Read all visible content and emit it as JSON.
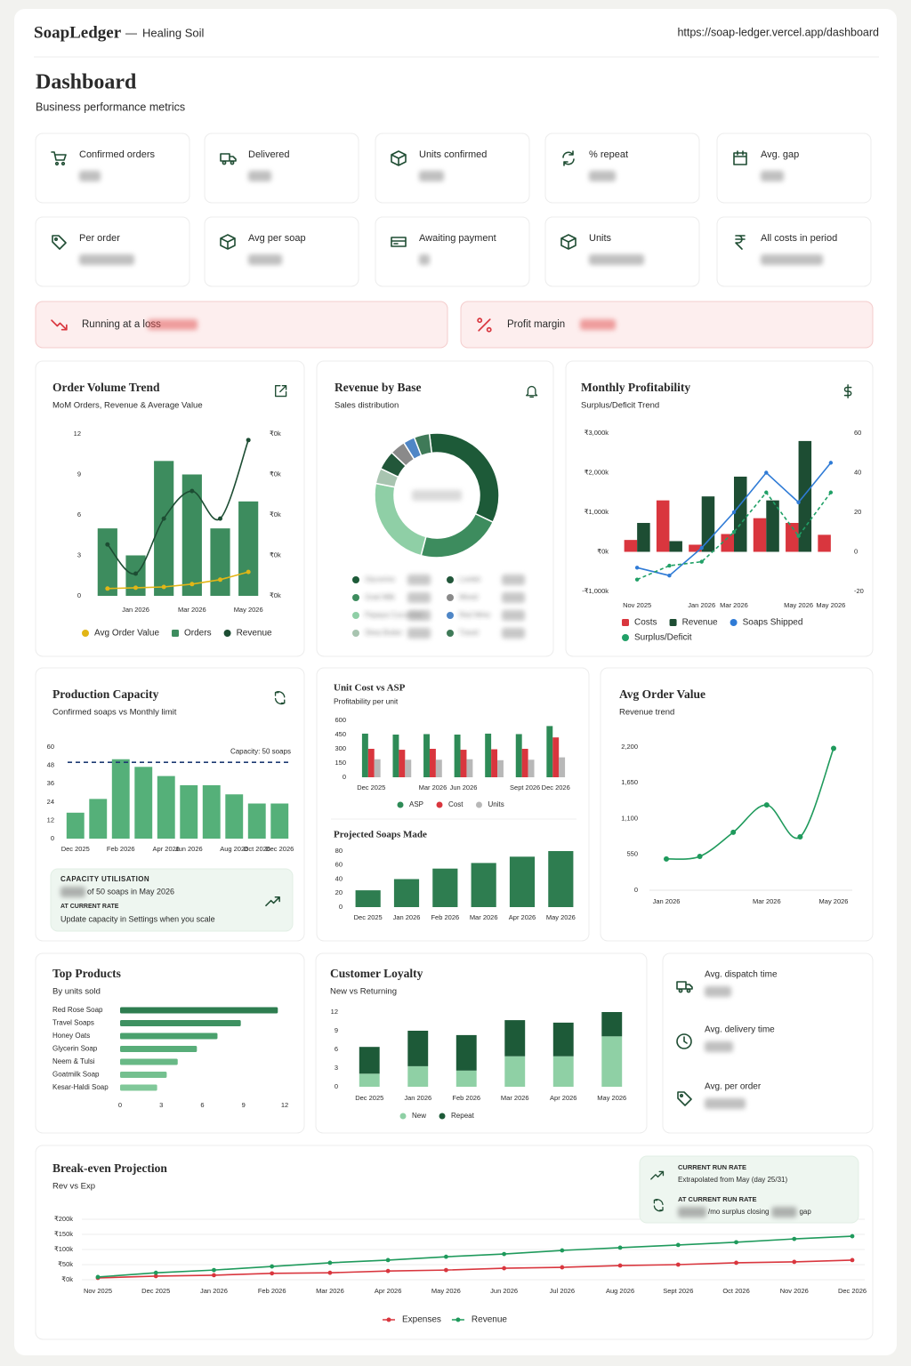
{
  "header": {
    "brand": "SoapLedger",
    "separator": "—",
    "workspace": "Healing Soil",
    "url": "https://soap-ledger.vercel.app/dashboard"
  },
  "page": {
    "title": "Dashboard",
    "subtitle": "Business performance metrics"
  },
  "kpis": [
    "Confirmed orders",
    "Delivered",
    "Units confirmed",
    "% repeat",
    "Avg. gap",
    "Per order",
    "Avg per soap",
    "Awaiting payment",
    "Units",
    "All costs in period"
  ],
  "alerts": [
    "Running at a loss",
    "Profit margin"
  ],
  "chart_data": [
    {
      "type": "combo",
      "title": "Order Volume Trend",
      "subtitle": "MoM Orders, Revenue & Average Value",
      "categories": [
        null,
        "Jan 2026",
        null,
        "Mar 2026",
        null,
        "May 2026"
      ],
      "series": [
        {
          "name": "Avg Order Value",
          "color": "#e2b616",
          "kind": "line",
          "axis": "y2",
          "values": [
            18,
            20,
            22,
            29,
            40,
            59
          ]
        },
        {
          "name": "Orders",
          "color": "#3d8c5e",
          "kind": "bar",
          "values": [
            5,
            3,
            10,
            9,
            5,
            7
          ]
        },
        {
          "name": "Revenue",
          "color": "#1d4d33",
          "kind": "line",
          "axis": "y2",
          "smooth": true,
          "values": [
            127,
            55,
            191,
            259,
            191,
            385
          ]
        }
      ],
      "ylim": [
        0,
        12
      ],
      "yticks": [
        0,
        3,
        6,
        9,
        12
      ],
      "y2lim": [
        0,
        400
      ],
      "y2ticks": [
        {
          "value": 0,
          "label": "₹0k"
        },
        {
          "value": 100,
          "label": "₹0k"
        },
        {
          "value": 200,
          "label": "₹0k"
        },
        {
          "value": 300,
          "label": "₹0k"
        },
        {
          "value": 400,
          "label": "₹0k"
        }
      ],
      "grid": false
    },
    {
      "type": "donut",
      "title": "Revenue by Base",
      "subtitle": "Sales distribution",
      "categories": [
        "Glycerine",
        "Goat Milk",
        "Papaya Cucumber",
        "Shea Butter",
        "Loofah",
        "Mixed",
        "Red Wine",
        "Travel"
      ],
      "values": [
        34,
        22,
        24,
        4,
        5,
        4,
        3,
        4
      ],
      "colors": [
        "#1d5a38",
        "#3d8c5e",
        "#8fcfa6",
        "#a8c4b0",
        "#22573a",
        "#8a8a8a",
        "#4f86c6",
        "#3f7a58"
      ]
    },
    {
      "type": "combo",
      "title": "Monthly Profitability",
      "subtitle": "Surplus/Deficit Trend",
      "categories": [
        "Nov 2025",
        null,
        "Jan 2026",
        "Mar 2026",
        null,
        "May 2026",
        "May 2026"
      ],
      "series": [
        {
          "name": "Costs",
          "color": "#d9363e",
          "kind": "bar",
          "values": [
            300,
            1300,
            180,
            450,
            850,
            730,
            430
          ]
        },
        {
          "name": "Revenue",
          "color": "#1d4d33",
          "kind": "bar",
          "values": [
            730,
            270,
            1400,
            1900,
            1300,
            2800,
            0
          ]
        },
        {
          "name": "Soaps Shipped",
          "color": "#2f7bd6",
          "kind": "line",
          "axis": "y2",
          "values": [
            -8,
            -12,
            2,
            20,
            40,
            25,
            45
          ]
        },
        {
          "name": "Surplus/Deficit",
          "color": "#21a067",
          "kind": "line",
          "axis": "y2",
          "dashed": true,
          "values": [
            -14,
            -7,
            -5,
            10,
            30,
            8,
            30
          ]
        }
      ],
      "ylim": [
        -1000,
        3000
      ],
      "yticks": [
        {
          "value": -1000,
          "label": "-₹1,000k"
        },
        {
          "value": 0,
          "label": "₹0k"
        },
        {
          "value": 1000,
          "label": "₹1,000k"
        },
        {
          "value": 2000,
          "label": "₹2,000k"
        },
        {
          "value": 3000,
          "label": "₹3,000k"
        }
      ],
      "y2lim": [
        -20,
        60
      ],
      "y2ticks": [
        -20,
        0,
        20,
        40,
        60
      ],
      "grid": false
    },
    {
      "type": "bar",
      "title": "Production Capacity",
      "subtitle": "Confirmed soaps vs Monthly limit",
      "categories": [
        "Dec 2025",
        null,
        "Feb 2026",
        null,
        "Apr 2026",
        "Jun 2026",
        null,
        "Aug 2026",
        "Oct 2026",
        "Dec 2026"
      ],
      "values": [
        17,
        26,
        52,
        47,
        41,
        35,
        35,
        29,
        23,
        23
      ],
      "color": "#55b079",
      "ylim": [
        0,
        60
      ],
      "yticks": [
        0,
        12,
        24,
        36,
        48,
        60
      ],
      "reference": {
        "value": 50,
        "label": "Capacity: 50 soaps",
        "color": "#1f3b73"
      }
    },
    {
      "type": "grouped-bar",
      "title": "Unit Cost vs ASP",
      "subtitle": "Profitability per unit",
      "categories": [
        "Dec 2025",
        null,
        "Mar 2026",
        "Jun 2026",
        null,
        "Sept 2026",
        "Dec 2026"
      ],
      "series": [
        {
          "name": "ASP",
          "color": "#2e8b57",
          "values": [
            460,
            450,
            455,
            450,
            460,
            455,
            540
          ]
        },
        {
          "name": "Cost",
          "color": "#d9363e",
          "values": [
            300,
            290,
            300,
            290,
            295,
            300,
            420
          ]
        },
        {
          "name": "Units",
          "color": "#b8b8b8",
          "values": [
            190,
            185,
            185,
            190,
            180,
            185,
            210
          ]
        }
      ],
      "ylim": [
        0,
        600
      ],
      "yticks": [
        0,
        150,
        300,
        450,
        600
      ]
    },
    {
      "type": "bar",
      "title": "Projected Soaps Made",
      "categories": [
        "Dec 2025",
        "Jan 2026",
        "Feb 2026",
        "Mar 2026",
        "Apr 2026",
        "May 2026"
      ],
      "values": [
        24,
        40,
        55,
        63,
        72,
        80
      ],
      "color": "#2e7d50",
      "ylim": [
        0,
        80
      ],
      "yticks": [
        0,
        20,
        40,
        60,
        80
      ]
    },
    {
      "type": "line",
      "title": "Avg Order Value",
      "subtitle": "Revenue trend",
      "categories": [
        "Jan 2026",
        null,
        null,
        "Mar 2026",
        null,
        "May 2026"
      ],
      "series": [
        {
          "name": "Avg Order Value",
          "color": "#1f9a5c",
          "smooth": true,
          "values": [
            480,
            520,
            890,
            1310,
            820,
            2180
          ]
        }
      ],
      "ylim": [
        0,
        2200
      ],
      "yticks": [
        0,
        550,
        {
          "value": 1100,
          "label": "1,100"
        },
        {
          "value": 1650,
          "label": "1,650"
        },
        {
          "value": 2200,
          "label": "2,200"
        }
      ]
    },
    {
      "type": "hbar",
      "title": "Top Products",
      "subtitle": "By units sold",
      "categories": [
        "Red Rose Soap",
        "Travel Soaps",
        "Honey Oats",
        "Glycerin Soap",
        "Neem & Tulsi",
        "Goatmilk Soap",
        "Kesar-Haldi Soap"
      ],
      "values": [
        11.5,
        8.8,
        7.1,
        5.6,
        4.2,
        3.4,
        2.7
      ],
      "colors": [
        "#2e7d50",
        "#3e9161",
        "#4aa16d",
        "#58ad79",
        "#68b986",
        "#74c08f",
        "#80c899"
      ],
      "xlim": [
        0,
        12
      ],
      "xticks": [
        0,
        3,
        6,
        9,
        12
      ]
    },
    {
      "type": "stacked-bar",
      "title": "Customer Loyalty",
      "subtitle": "New vs Returning",
      "categories": [
        "Dec 2025",
        "Jan 2026",
        "Feb 2026",
        "Mar 2026",
        "Apr 2026",
        "May 2026"
      ],
      "series": [
        {
          "name": "New",
          "color": "#8fd0a5",
          "values": [
            2.1,
            3.3,
            2.6,
            4.9,
            4.9,
            8.1
          ]
        },
        {
          "name": "Repeat",
          "color": "#1d5a38",
          "values": [
            4.3,
            5.7,
            5.7,
            5.8,
            5.4,
            3.9
          ]
        }
      ],
      "ylim": [
        0,
        12
      ],
      "yticks": [
        0,
        3,
        6,
        9,
        12
      ]
    },
    {
      "type": "line",
      "title": "Break-even Projection",
      "subtitle": "Rev vs Exp",
      "categories": [
        "Nov 2025",
        "Dec 2025",
        "Jan 2026",
        "Feb 2026",
        "Mar 2026",
        "Apr 2026",
        "May 2026",
        "Jun 2026",
        "Jul 2026",
        "Aug 2026",
        "Sept 2026",
        "Oct 2026",
        "Nov 2026",
        "Dec 2026"
      ],
      "series": [
        {
          "name": "Expenses",
          "color": "#d9363e",
          "values": [
            6,
            12,
            15,
            21,
            23,
            29,
            32,
            38,
            41,
            47,
            50,
            56,
            59,
            65
          ]
        },
        {
          "name": "Revenue",
          "color": "#1f9a5c",
          "values": [
            9,
            23,
            32,
            44,
            56,
            65,
            76,
            85,
            97,
            106,
            115,
            124,
            135,
            144
          ]
        }
      ],
      "ylim": [
        0,
        200
      ],
      "yticks": [
        {
          "value": 0,
          "label": "₹0k"
        },
        {
          "value": 50,
          "label": "₹50k"
        },
        {
          "value": 100,
          "label": "₹100k"
        },
        {
          "value": 150,
          "label": "₹150k"
        },
        {
          "value": 200,
          "label": "₹200k"
        }
      ],
      "grid": true
    }
  ],
  "capacity_card": {
    "heading": "CAPACITY UTILISATION",
    "line": "of 50 soaps in May 2026",
    "rate_label": "AT CURRENT RATE",
    "hint": "Update capacity in Settings when you scale"
  },
  "stats": [
    "Avg. dispatch time",
    "Avg. delivery time",
    "Avg. per order"
  ],
  "run_rate": {
    "heading": "CURRENT RUN RATE",
    "note": "Extrapolated from May (day 25/31)",
    "heading2": "AT CURRENT RUN RATE",
    "surplus": "/mo surplus closing",
    "gap": "gap"
  }
}
